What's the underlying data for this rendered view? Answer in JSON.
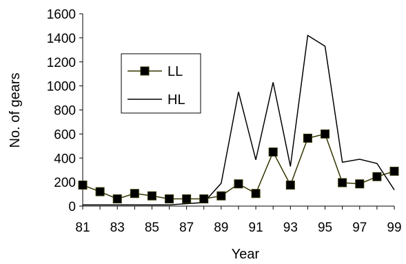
{
  "chart_data": {
    "type": "line",
    "xlabel": "Year",
    "ylabel": "No. of gears",
    "ylim": [
      0,
      1600
    ],
    "yticks": [
      0,
      200,
      400,
      600,
      800,
      1000,
      1200,
      1400,
      1600
    ],
    "x": [
      81,
      82,
      83,
      84,
      85,
      86,
      87,
      88,
      89,
      90,
      91,
      92,
      93,
      94,
      95,
      96,
      97,
      98,
      99
    ],
    "xtick_labels": [
      "81",
      "83",
      "85",
      "87",
      "89",
      "91",
      "93",
      "95",
      "97",
      "99"
    ],
    "grid": false,
    "legend_position": "left",
    "series": [
      {
        "name": "LL",
        "marker": "square",
        "line_color": "#333300",
        "marker_fill": "#000000",
        "values": [
          175,
          120,
          60,
          105,
          85,
          60,
          60,
          60,
          85,
          185,
          105,
          450,
          175,
          565,
          600,
          195,
          185,
          245,
          290
        ]
      },
      {
        "name": "HL",
        "marker": "none",
        "line_color": "#000000",
        "values": [
          10,
          10,
          10,
          10,
          10,
          10,
          20,
          30,
          190,
          950,
          385,
          1030,
          330,
          1420,
          1330,
          365,
          390,
          355,
          135
        ]
      }
    ]
  }
}
